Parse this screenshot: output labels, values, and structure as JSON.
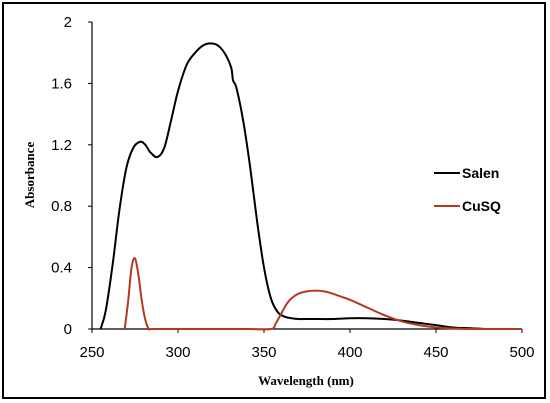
{
  "chart_data": {
    "type": "line",
    "xlabel": "Wavelength (nm)",
    "ylabel": "Absorbance",
    "xlim": [
      250,
      500
    ],
    "ylim": [
      0,
      2
    ],
    "xticks": [
      "250",
      "300",
      "350",
      "400",
      "450",
      "500"
    ],
    "yticks": [
      "0",
      "0.4",
      "0.8",
      "1.2",
      "1.6",
      "2"
    ],
    "grid": false,
    "legend_position": "right",
    "series": [
      {
        "name": "Salen",
        "color": "#000000",
        "x": [
          255,
          258,
          262,
          266,
          270,
          274,
          278,
          281,
          284,
          288,
          292,
          296,
          300,
          305,
          310,
          315,
          320,
          324,
          328,
          331,
          332,
          334,
          338,
          342,
          346,
          350,
          354,
          358,
          362,
          366,
          370,
          375,
          380,
          390,
          400,
          410,
          420,
          430,
          440,
          450,
          460,
          470,
          480,
          490,
          500
        ],
        "y": [
          0.0,
          0.12,
          0.42,
          0.78,
          1.05,
          1.18,
          1.22,
          1.2,
          1.15,
          1.12,
          1.18,
          1.36,
          1.55,
          1.72,
          1.8,
          1.85,
          1.86,
          1.84,
          1.78,
          1.7,
          1.62,
          1.57,
          1.35,
          1.05,
          0.7,
          0.4,
          0.2,
          0.11,
          0.08,
          0.07,
          0.065,
          0.065,
          0.065,
          0.065,
          0.07,
          0.07,
          0.065,
          0.055,
          0.04,
          0.025,
          0.01,
          0.005,
          0.0,
          0.0,
          0.0
        ]
      },
      {
        "name": "CuSQ",
        "color": "#b33a1f",
        "x": [
          269,
          271,
          273,
          275,
          277,
          279,
          281,
          283,
          285,
          300,
          320,
          340,
          354,
          357,
          360,
          363,
          366,
          370,
          375,
          380,
          385,
          390,
          395,
          400,
          410,
          420,
          430,
          440,
          450,
          460,
          470,
          480,
          490,
          500
        ],
        "y": [
          0.0,
          0.18,
          0.4,
          0.46,
          0.35,
          0.18,
          0.06,
          0.0,
          0.0,
          0.0,
          0.0,
          0.0,
          0.0,
          0.04,
          0.1,
          0.16,
          0.2,
          0.23,
          0.245,
          0.25,
          0.245,
          0.23,
          0.21,
          0.19,
          0.14,
          0.09,
          0.05,
          0.025,
          0.01,
          0.003,
          0.0,
          0.0,
          0.0,
          0.0
        ]
      }
    ]
  }
}
